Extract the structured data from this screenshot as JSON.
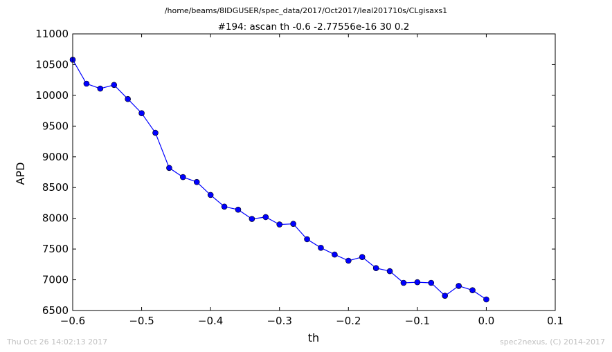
{
  "chart_data": {
    "type": "line",
    "suptitle": "/home/beams/8IDGUSER/spec_data/2017/Oct2017/leal201710s/CLgisaxs1",
    "title": "#194: ascan  th -0.6 -2.77556e-16  30 0.2",
    "xlabel": "th",
    "ylabel": "APD",
    "xlim": [
      -0.6,
      0.1
    ],
    "ylim": [
      6500,
      11000
    ],
    "xticks": [
      -0.6,
      -0.5,
      -0.4,
      -0.3,
      -0.2,
      -0.1,
      0.0,
      0.1
    ],
    "xtick_labels": [
      "−0.6",
      "−0.5",
      "−0.4",
      "−0.3",
      "−0.2",
      "−0.1",
      "0.0",
      "0.1"
    ],
    "yticks": [
      6500,
      7000,
      7500,
      8000,
      8500,
      9000,
      9500,
      10000,
      10500,
      11000
    ],
    "ytick_labels": [
      "6500",
      "7000",
      "7500",
      "8000",
      "8500",
      "9000",
      "9500",
      "10000",
      "10500",
      "11000"
    ],
    "grid": false,
    "color": "#0000ff",
    "series": [
      {
        "x": [
          -0.6,
          -0.58,
          -0.56,
          -0.54,
          -0.52,
          -0.5,
          -0.48,
          -0.46,
          -0.44,
          -0.42,
          -0.4,
          -0.38,
          -0.36,
          -0.34,
          -0.32,
          -0.3,
          -0.28,
          -0.26,
          -0.24,
          -0.22,
          -0.2,
          -0.18,
          -0.16,
          -0.14,
          -0.12,
          -0.1,
          -0.08,
          -0.06,
          -0.04,
          -0.02,
          0.0
        ],
        "values": [
          10580,
          10190,
          10110,
          10170,
          9940,
          9710,
          9390,
          8820,
          8670,
          8590,
          8380,
          8190,
          8140,
          7990,
          8020,
          7900,
          7910,
          7660,
          7520,
          7410,
          7310,
          7370,
          7190,
          7140,
          6950,
          6960,
          6950,
          6740,
          6900,
          6830,
          6680
        ]
      }
    ]
  },
  "footer": {
    "timestamp": "Thu Oct 26 14:02:13 2017",
    "credit": "spec2nexus, (C) 2014-2017"
  }
}
